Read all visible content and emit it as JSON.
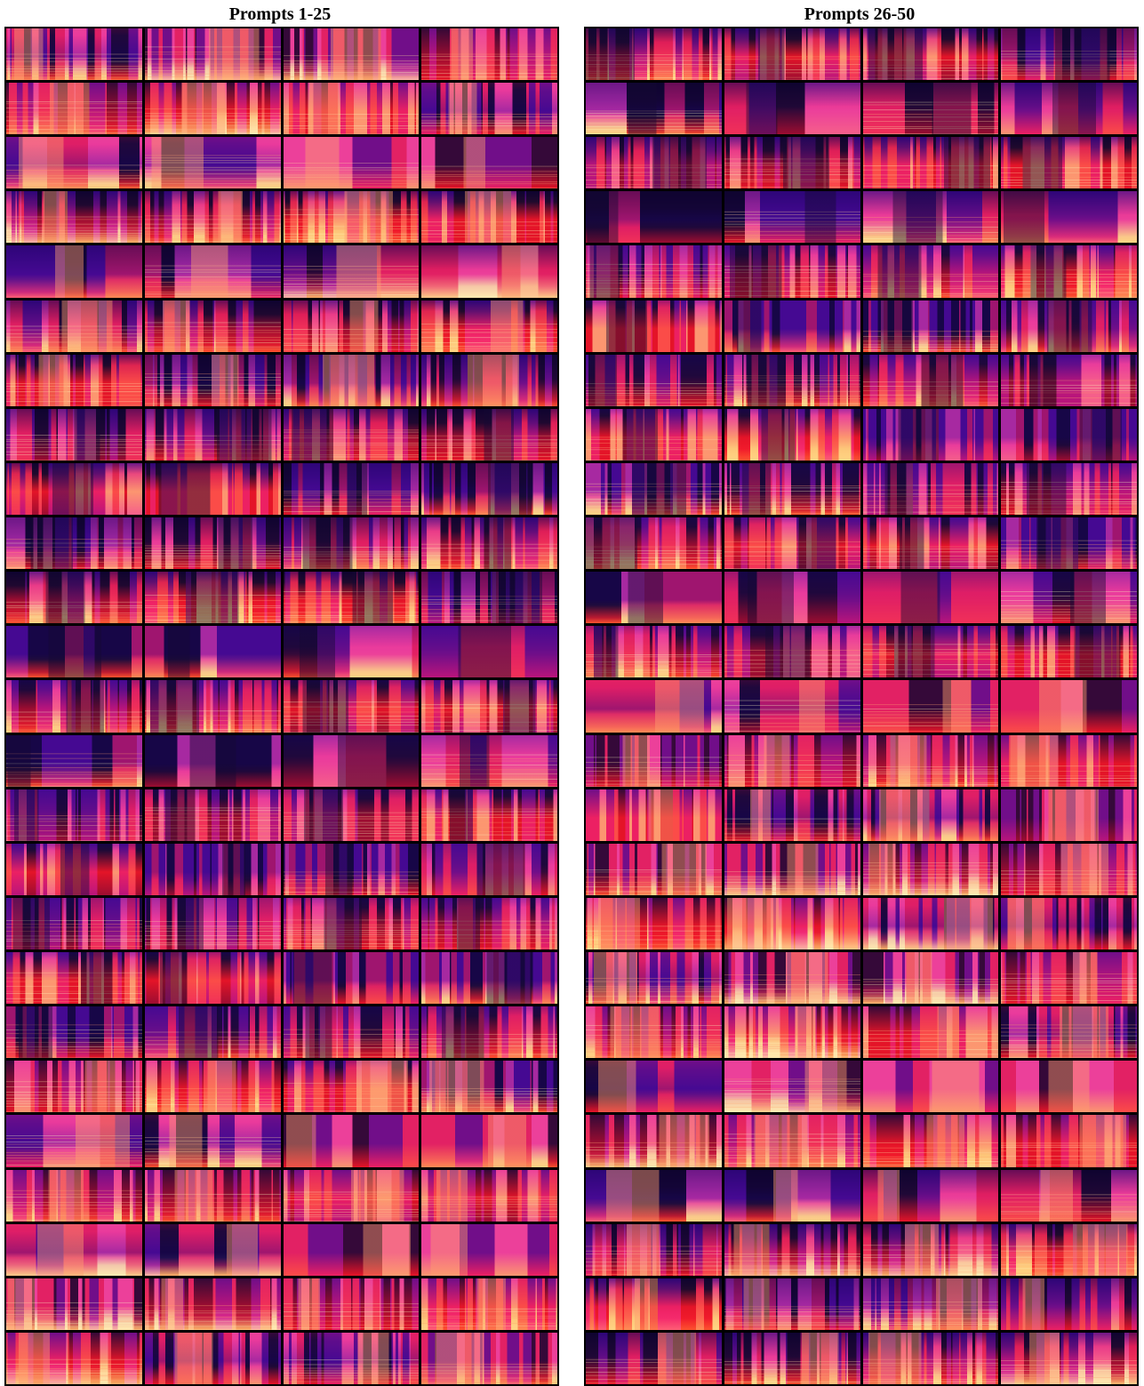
{
  "panels": [
    {
      "id": "left",
      "title": "Prompts 1-25",
      "rows": 25,
      "cols": 4
    },
    {
      "id": "right",
      "title": "Prompts 26-50",
      "rows": 25,
      "cols": 4
    }
  ],
  "content": "grid of mel-spectrogram thumbnails (4 samples per prompt)",
  "colormap": [
    "#0d0829",
    "#3b0f70",
    "#5b1a8a",
    "#8c2981",
    "#c73d73",
    "#f0605d",
    "#fe9f6d",
    "#fdd49e",
    "#fcfdbf"
  ],
  "separator_color": "#000000",
  "background_color": "#ffffff"
}
